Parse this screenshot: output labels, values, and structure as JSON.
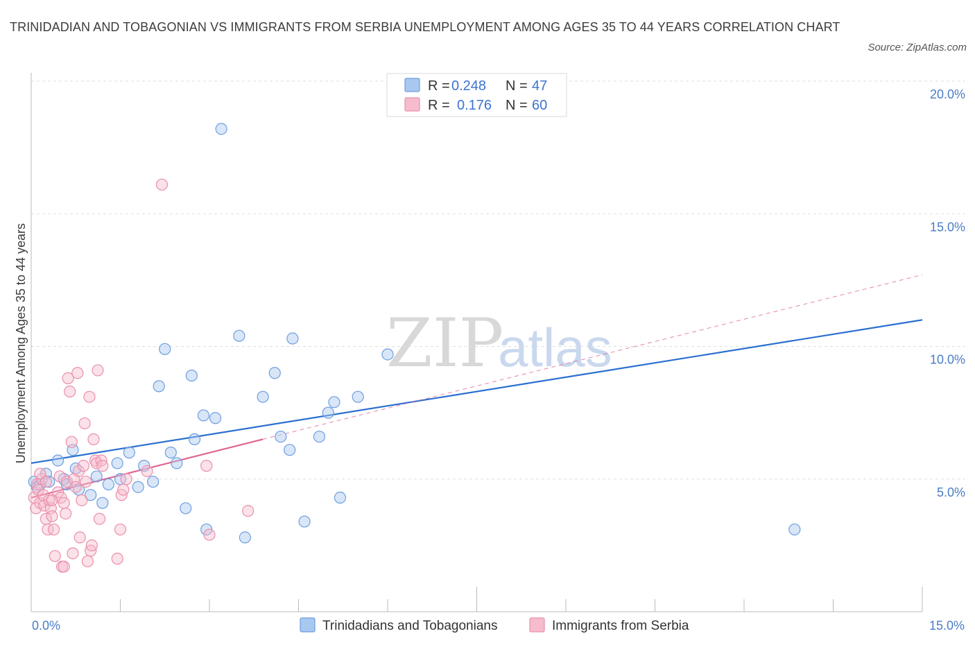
{
  "header": {
    "title": "TRINIDADIAN AND TOBAGONIAN VS IMMIGRANTS FROM SERBIA UNEMPLOYMENT AMONG AGES 35 TO 44 YEARS CORRELATION CHART",
    "source": "Source: ZipAtlas.com"
  },
  "watermark": {
    "zip": "ZIP",
    "atlas": "atlas"
  },
  "legend": {
    "rows": [
      {
        "r_label": "R =",
        "r_value": "0.248",
        "n_label": "N =",
        "n_value": "47"
      },
      {
        "r_label": "R =",
        "r_value": "0.176",
        "n_label": "N =",
        "n_value": "60"
      }
    ]
  },
  "colors": {
    "series1_fill": "#a9c8f0",
    "series1_stroke": "#6d9de0",
    "series1_line": "#2a6fd0",
    "series2_fill": "#f6bccd",
    "series2_stroke": "#ea8fab",
    "series2_line": "#e06590",
    "tick_text": "#4a7cc7",
    "grid": "#dddddd"
  },
  "chart_data": {
    "type": "scatter",
    "title": "TRINIDADIAN AND TOBAGONIAN VS IMMIGRANTS FROM SERBIA UNEMPLOYMENT AMONG AGES 35 TO 44 YEARS CORRELATION CHART",
    "xlabel": "",
    "ylabel": "Unemployment Among Ages 35 to 44 years",
    "xlim": [
      0,
      15
    ],
    "ylim": [
      0,
      20
    ],
    "x_tick_labels": [
      "0.0%",
      "15.0%"
    ],
    "y_ticks": [
      5,
      10,
      15,
      20
    ],
    "y_tick_labels": [
      "5.0%",
      "10.0%",
      "15.0%",
      "20.0%"
    ],
    "grid": "horizontal dashed",
    "legend_position": "top-center",
    "series": [
      {
        "name": "Trinidadians and Tobagonians",
        "r": 0.248,
        "n": 47,
        "trend": {
          "x": [
            0,
            15
          ],
          "y": [
            5.6,
            11.0
          ],
          "style": "solid"
        },
        "points": [
          [
            0.05,
            4.9
          ],
          [
            0.1,
            4.7
          ],
          [
            0.15,
            4.8
          ],
          [
            0.25,
            5.2
          ],
          [
            0.3,
            4.9
          ],
          [
            0.45,
            5.7
          ],
          [
            0.55,
            5.0
          ],
          [
            0.6,
            4.8
          ],
          [
            0.7,
            6.1
          ],
          [
            0.75,
            5.4
          ],
          [
            0.8,
            4.6
          ],
          [
            1.0,
            4.4
          ],
          [
            1.1,
            5.1
          ],
          [
            1.2,
            4.1
          ],
          [
            1.3,
            4.8
          ],
          [
            1.45,
            5.6
          ],
          [
            1.5,
            5.0
          ],
          [
            1.65,
            6.0
          ],
          [
            1.8,
            4.7
          ],
          [
            1.9,
            5.5
          ],
          [
            2.05,
            4.9
          ],
          [
            2.15,
            8.5
          ],
          [
            2.25,
            9.9
          ],
          [
            2.35,
            6.0
          ],
          [
            2.45,
            5.6
          ],
          [
            2.6,
            3.9
          ],
          [
            2.7,
            8.9
          ],
          [
            2.75,
            6.5
          ],
          [
            2.9,
            7.4
          ],
          [
            2.95,
            3.1
          ],
          [
            3.1,
            7.3
          ],
          [
            3.2,
            18.2
          ],
          [
            3.5,
            10.4
          ],
          [
            3.6,
            2.8
          ],
          [
            3.9,
            8.1
          ],
          [
            4.1,
            9.0
          ],
          [
            4.2,
            6.6
          ],
          [
            4.35,
            6.1
          ],
          [
            4.4,
            10.3
          ],
          [
            4.6,
            3.4
          ],
          [
            4.85,
            6.6
          ],
          [
            5.0,
            7.5
          ],
          [
            5.1,
            7.9
          ],
          [
            5.2,
            4.3
          ],
          [
            5.5,
            8.1
          ],
          [
            6.0,
            9.7
          ],
          [
            12.85,
            3.1
          ]
        ]
      },
      {
        "name": "Immigrants from Serbia",
        "r": 0.176,
        "n": 60,
        "trend": {
          "x": [
            0,
            3.9
          ],
          "y": [
            4.3,
            6.5
          ],
          "style": "solid",
          "extension_x": [
            3.9,
            15
          ],
          "extension_y": [
            6.5,
            12.7
          ],
          "extension_style": "dashed"
        },
        "points": [
          [
            0.05,
            4.3
          ],
          [
            0.08,
            3.9
          ],
          [
            0.1,
            4.8
          ],
          [
            0.12,
            4.6
          ],
          [
            0.15,
            4.1
          ],
          [
            0.18,
            5.0
          ],
          [
            0.2,
            4.4
          ],
          [
            0.22,
            4.0
          ],
          [
            0.25,
            3.5
          ],
          [
            0.28,
            3.1
          ],
          [
            0.3,
            4.2
          ],
          [
            0.33,
            3.9
          ],
          [
            0.35,
            3.6
          ],
          [
            0.38,
            3.1
          ],
          [
            0.4,
            2.1
          ],
          [
            0.45,
            4.5
          ],
          [
            0.48,
            5.1
          ],
          [
            0.5,
            4.3
          ],
          [
            0.52,
            1.7
          ],
          [
            0.55,
            1.7
          ],
          [
            0.58,
            3.7
          ],
          [
            0.6,
            4.9
          ],
          [
            0.62,
            8.8
          ],
          [
            0.65,
            8.3
          ],
          [
            0.68,
            6.4
          ],
          [
            0.7,
            2.2
          ],
          [
            0.72,
            5.0
          ],
          [
            0.75,
            4.7
          ],
          [
            0.78,
            9.0
          ],
          [
            0.8,
            5.3
          ],
          [
            0.82,
            2.8
          ],
          [
            0.85,
            4.2
          ],
          [
            0.88,
            5.5
          ],
          [
            0.9,
            7.1
          ],
          [
            0.92,
            4.9
          ],
          [
            0.95,
            1.9
          ],
          [
            0.98,
            8.1
          ],
          [
            1.0,
            2.3
          ],
          [
            1.02,
            2.5
          ],
          [
            1.05,
            6.5
          ],
          [
            1.08,
            5.7
          ],
          [
            1.1,
            5.6
          ],
          [
            1.12,
            9.1
          ],
          [
            1.15,
            3.5
          ],
          [
            1.18,
            5.7
          ],
          [
            1.2,
            5.5
          ],
          [
            1.45,
            2.0
          ],
          [
            1.5,
            3.1
          ],
          [
            1.52,
            4.4
          ],
          [
            1.55,
            4.6
          ],
          [
            1.6,
            5.0
          ],
          [
            1.95,
            5.3
          ],
          [
            2.2,
            16.1
          ],
          [
            2.95,
            5.5
          ],
          [
            3.0,
            2.9
          ],
          [
            3.65,
            3.8
          ],
          [
            0.15,
            5.2
          ],
          [
            0.25,
            4.9
          ],
          [
            0.35,
            4.2
          ],
          [
            0.55,
            4.1
          ]
        ]
      }
    ]
  }
}
